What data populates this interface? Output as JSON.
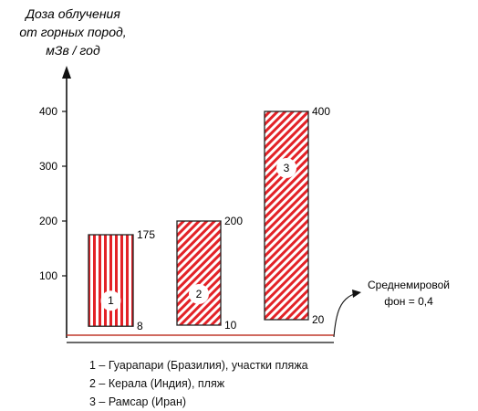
{
  "chart_data": {
    "type": "floating-bar",
    "ylabel_lines": [
      "Доза облучения",
      "от горных пород,",
      "мЗв / год"
    ],
    "yticks": [
      100,
      200,
      300,
      400
    ],
    "ylim": [
      0,
      400
    ],
    "bars": [
      {
        "id": "1",
        "low": 8,
        "high": 175,
        "low_label": "8",
        "high_label": "175",
        "pattern": "vertical-stripes"
      },
      {
        "id": "2",
        "low": 10,
        "high": 200,
        "low_label": "10",
        "high_label": "200",
        "pattern": "diagonal-stripes"
      },
      {
        "id": "3",
        "low": 20,
        "high": 400,
        "low_label": "20",
        "high_label": "400",
        "pattern": "diagonal-stripes"
      }
    ],
    "baseline": {
      "value": 0.4,
      "label_lines": [
        "Среднемировой",
        "фон = 0,4"
      ]
    },
    "legend": [
      "1 – Гуарапари (Бразилия), участки пляжа",
      "2 – Керала (Индия), пляж",
      "3 – Рамсар (Иран)"
    ],
    "colors": {
      "bar": "#e32227",
      "axis": "#111111",
      "baseline": "#c0392b"
    }
  }
}
